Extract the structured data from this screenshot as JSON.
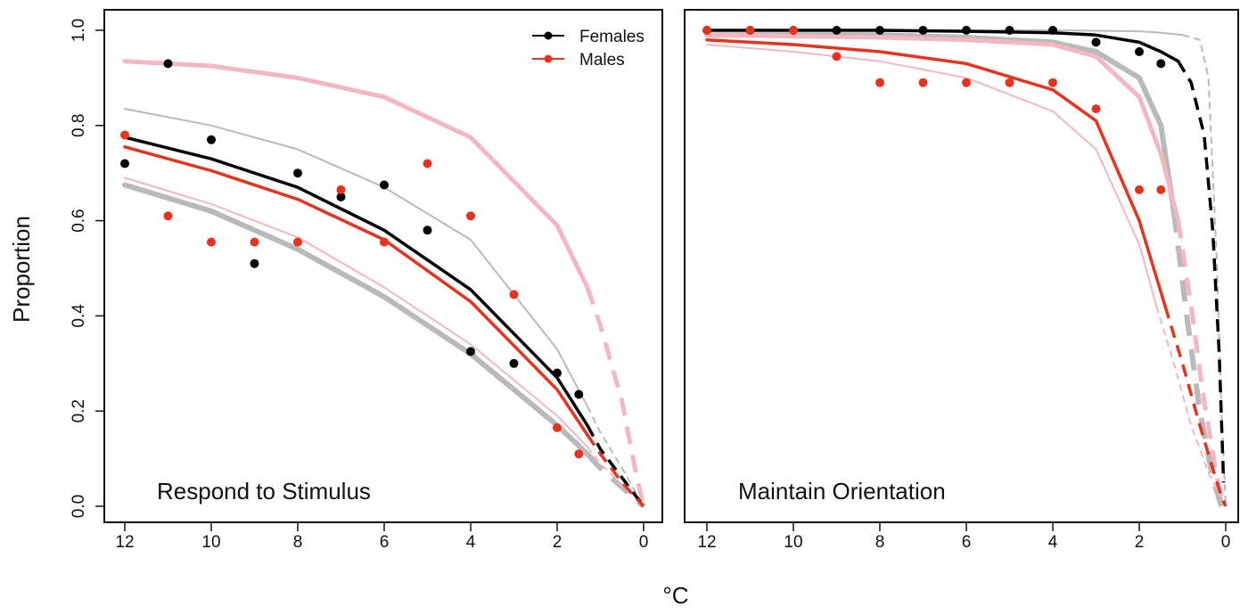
{
  "ylabel": "Proportion",
  "xlabel": "°C",
  "colors": {
    "females": "#000000",
    "males": "#e8321e",
    "females_ci": "#b9b9b9",
    "males_ci": "#f4b6c1"
  },
  "legend": {
    "position": "top-right",
    "entries": [
      {
        "name": "Females",
        "color": "#000000"
      },
      {
        "name": "Males",
        "color": "#e8321e"
      }
    ]
  },
  "chart_data": [
    {
      "type": "scatter",
      "title": "Respond to Stimulus",
      "xlim": [
        12,
        0
      ],
      "ylim": [
        0,
        1
      ],
      "x_ticks": [
        "12",
        "10",
        "8",
        "6",
        "4",
        "2",
        "0"
      ],
      "y_ticks": [
        "0.0",
        "0.2",
        "0.4",
        "0.6",
        "0.8",
        "1.0"
      ],
      "series": [
        {
          "name": "Females",
          "x": [
            12,
            11,
            10,
            9,
            8,
            7,
            6,
            5,
            4,
            3,
            2,
            1.5
          ],
          "y": [
            0.72,
            0.93,
            0.77,
            0.51,
            0.7,
            0.65,
            0.675,
            0.58,
            0.325,
            0.3,
            0.28,
            0.235
          ]
        },
        {
          "name": "Males",
          "x": [
            12,
            11,
            10,
            9,
            8,
            7,
            6,
            5,
            4,
            3,
            2,
            1.5
          ],
          "y": [
            0.78,
            0.61,
            0.555,
            0.555,
            0.555,
            0.665,
            0.555,
            0.72,
            0.61,
            0.445,
            0.165,
            0.11
          ]
        }
      ],
      "fits": [
        {
          "series": "Females",
          "style": "fit",
          "x": [
            12,
            10,
            8,
            6,
            4,
            2,
            1.3
          ],
          "y": [
            0.775,
            0.73,
            0.67,
            0.58,
            0.455,
            0.27,
            0.17
          ],
          "extrapolated_x": [
            1.3,
            1,
            0.5,
            0
          ],
          "extrapolated_y": [
            0.17,
            0.12,
            0.06,
            0
          ]
        },
        {
          "series": "Males",
          "style": "fit",
          "x": [
            12,
            10,
            8,
            6,
            4,
            2,
            1.3
          ],
          "y": [
            0.755,
            0.705,
            0.645,
            0.56,
            0.43,
            0.245,
            0.15
          ],
          "extrapolated_x": [
            1.3,
            1,
            0.5,
            0
          ],
          "extrapolated_y": [
            0.15,
            0.11,
            0.05,
            0
          ]
        },
        {
          "series": "Females",
          "style": "ci-upper",
          "x": [
            12,
            10,
            8,
            6,
            4,
            2,
            1.3
          ],
          "y": [
            0.835,
            0.8,
            0.75,
            0.67,
            0.56,
            0.33,
            0.21
          ],
          "extrapolated_x": [
            1.3,
            1,
            0.5,
            0
          ],
          "extrapolated_y": [
            0.21,
            0.155,
            0.08,
            0
          ]
        },
        {
          "series": "Females",
          "style": "ci-lower",
          "x": [
            12,
            10,
            8,
            6,
            4,
            2,
            1.3
          ],
          "y": [
            0.675,
            0.62,
            0.54,
            0.44,
            0.32,
            0.17,
            0.11
          ],
          "extrapolated_x": [
            1.3,
            1,
            0.5,
            0
          ],
          "extrapolated_y": [
            0.11,
            0.08,
            0.04,
            0
          ]
        },
        {
          "series": "Males",
          "style": "ci-upper",
          "x": [
            12,
            10,
            8,
            6,
            4,
            2,
            1.3
          ],
          "y": [
            0.935,
            0.925,
            0.9,
            0.86,
            0.775,
            0.59,
            0.46
          ],
          "extrapolated_x": [
            1.3,
            1,
            0.5,
            0.2,
            0
          ],
          "extrapolated_y": [
            0.46,
            0.38,
            0.22,
            0.08,
            0
          ]
        },
        {
          "series": "Males",
          "style": "ci-lower",
          "x": [
            12,
            10,
            8,
            6,
            4,
            2,
            1.3
          ],
          "y": [
            0.69,
            0.635,
            0.565,
            0.46,
            0.34,
            0.19,
            0.125
          ],
          "extrapolated_x": [
            1.3,
            1,
            0.5,
            0
          ],
          "extrapolated_y": [
            0.125,
            0.09,
            0.045,
            0
          ]
        }
      ]
    },
    {
      "type": "scatter",
      "title": "Maintain Orientation",
      "xlim": [
        12,
        0
      ],
      "ylim": [
        0,
        1
      ],
      "x_ticks": [
        "12",
        "10",
        "8",
        "6",
        "4",
        "2",
        "0"
      ],
      "series": [
        {
          "name": "Females",
          "x": [
            12,
            11,
            10,
            9,
            8,
            7,
            6,
            5,
            4,
            3,
            2,
            1.5
          ],
          "y": [
            1.0,
            1.0,
            1.0,
            1.0,
            1.0,
            1.0,
            1.0,
            1.0,
            1.0,
            0.975,
            0.955,
            0.93
          ]
        },
        {
          "name": "Males",
          "x": [
            12,
            11,
            10,
            9,
            8,
            7,
            6,
            5,
            4,
            3,
            2,
            1.5
          ],
          "y": [
            1.0,
            1.0,
            1.0,
            0.945,
            0.89,
            0.89,
            0.89,
            0.89,
            0.89,
            0.835,
            0.665,
            0.665
          ]
        }
      ],
      "fits": [
        {
          "series": "Females",
          "style": "fit",
          "x": [
            12,
            8,
            6,
            4,
            3,
            2,
            1.5,
            1.1
          ],
          "y": [
            1.0,
            1.0,
            0.998,
            0.995,
            0.99,
            0.975,
            0.955,
            0.935
          ],
          "extrapolated_x": [
            1.1,
            0.8,
            0.5,
            0.3,
            0.15,
            0.05
          ],
          "extrapolated_y": [
            0.935,
            0.89,
            0.78,
            0.58,
            0.32,
            0.05
          ]
        },
        {
          "series": "Males",
          "style": "fit",
          "x": [
            12,
            10,
            8,
            6,
            4,
            3,
            2,
            1.4
          ],
          "y": [
            0.98,
            0.97,
            0.955,
            0.93,
            0.875,
            0.81,
            0.6,
            0.42
          ],
          "extrapolated_x": [
            1.4,
            1,
            0.6,
            0.3,
            0.1,
            0
          ],
          "extrapolated_y": [
            0.42,
            0.3,
            0.17,
            0.08,
            0.02,
            0
          ]
        },
        {
          "series": "Females",
          "style": "ci-upper",
          "x": [
            12,
            8,
            6,
            4,
            2,
            1.5,
            1
          ],
          "y": [
            1.0,
            1.0,
            1.0,
            1.0,
            0.998,
            0.995,
            0.99
          ],
          "extrapolated_x": [
            1,
            0.6,
            0.4,
            0.2,
            0.1,
            0
          ],
          "extrapolated_y": [
            0.99,
            0.98,
            0.9,
            0.5,
            0.2,
            0
          ]
        },
        {
          "series": "Females",
          "style": "ci-lower",
          "x": [
            12,
            8,
            6,
            4,
            3,
            2,
            1.5,
            1.2
          ],
          "y": [
            0.99,
            0.99,
            0.985,
            0.975,
            0.955,
            0.9,
            0.8,
            0.62
          ],
          "extrapolated_x": [
            1.2,
            0.9,
            0.6,
            0.3,
            0.1
          ],
          "extrapolated_y": [
            0.62,
            0.4,
            0.2,
            0.06,
            0
          ]
        },
        {
          "series": "Males",
          "style": "ci-upper",
          "x": [
            12,
            8,
            6,
            4,
            3,
            2,
            1.5,
            1.1
          ],
          "y": [
            0.99,
            0.985,
            0.98,
            0.97,
            0.945,
            0.86,
            0.74,
            0.6
          ],
          "extrapolated_x": [
            1.1,
            0.8,
            0.5,
            0.2,
            0.05
          ],
          "extrapolated_y": [
            0.6,
            0.42,
            0.22,
            0.06,
            0
          ]
        },
        {
          "series": "Males",
          "style": "ci-lower",
          "x": [
            12,
            10,
            8,
            6,
            4,
            3,
            2,
            1.6
          ],
          "y": [
            0.97,
            0.955,
            0.935,
            0.9,
            0.83,
            0.75,
            0.55,
            0.42
          ],
          "extrapolated_x": [
            1.6,
            1.2,
            0.8,
            0.4,
            0.1,
            0
          ],
          "extrapolated_y": [
            0.42,
            0.3,
            0.17,
            0.07,
            0.02,
            0
          ]
        }
      ]
    }
  ]
}
